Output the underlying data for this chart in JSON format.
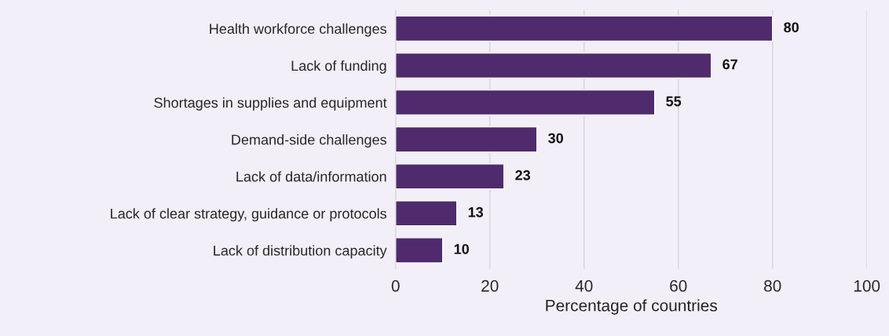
{
  "chart_data": {
    "type": "bar",
    "orientation": "horizontal",
    "categories": [
      "Health workforce challenges",
      "Lack of funding",
      "Shortages in supplies and equipment",
      "Demand-side challenges",
      "Lack of data/information",
      "Lack of clear strategy, guidance or protocols",
      "Lack of distribution capacity"
    ],
    "values": [
      80,
      67,
      55,
      30,
      23,
      13,
      10
    ],
    "color": "#4f2b6e",
    "xlabel": "Percentage of countries",
    "xlim": [
      0,
      100
    ],
    "xticks": [
      0,
      20,
      40,
      60,
      80,
      100
    ],
    "grid": "x",
    "data_labels": true
  }
}
